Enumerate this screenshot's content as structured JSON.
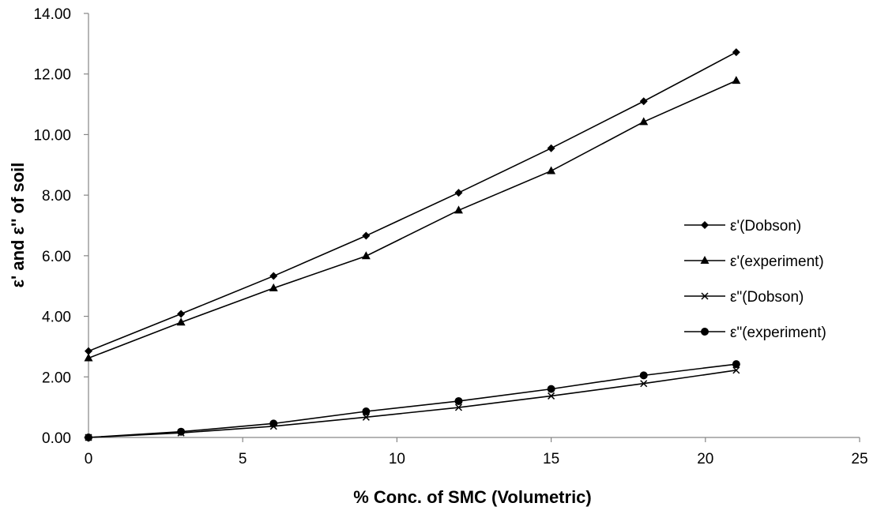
{
  "chart_data": {
    "type": "line",
    "title": "",
    "xlabel": "% Conc. of SMC (Volumetric)",
    "ylabel": "ε' and ε'' of soil",
    "xlim": [
      0,
      25
    ],
    "ylim": [
      0,
      14
    ],
    "x_ticks": [
      "0",
      "5",
      "10",
      "15",
      "20",
      "25"
    ],
    "y_ticks": [
      "0.00",
      "2.00",
      "4.00",
      "6.00",
      "8.00",
      "10.00",
      "12.00",
      "14.00"
    ],
    "grid": false,
    "legend_position": "right",
    "x": [
      0,
      3,
      6,
      9,
      12,
      15,
      18,
      21
    ],
    "series": [
      {
        "name": "ε'(Dobson)",
        "marker": "diamond",
        "values": [
          2.85,
          4.08,
          5.33,
          6.66,
          8.08,
          9.55,
          11.1,
          12.72
        ]
      },
      {
        "name": "ε'(experiment)",
        "marker": "triangle",
        "values": [
          2.62,
          3.8,
          4.93,
          5.99,
          7.5,
          8.8,
          10.42,
          11.78
        ]
      },
      {
        "name": "ε\"(Dobson)",
        "marker": "x",
        "values": [
          0.0,
          0.15,
          0.37,
          0.67,
          0.99,
          1.37,
          1.78,
          2.22
        ]
      },
      {
        "name": "ε\"(experiment)",
        "marker": "circle",
        "values": [
          0.0,
          0.19,
          0.46,
          0.86,
          1.2,
          1.6,
          2.05,
          2.42
        ]
      }
    ],
    "line_color": "#000000"
  }
}
